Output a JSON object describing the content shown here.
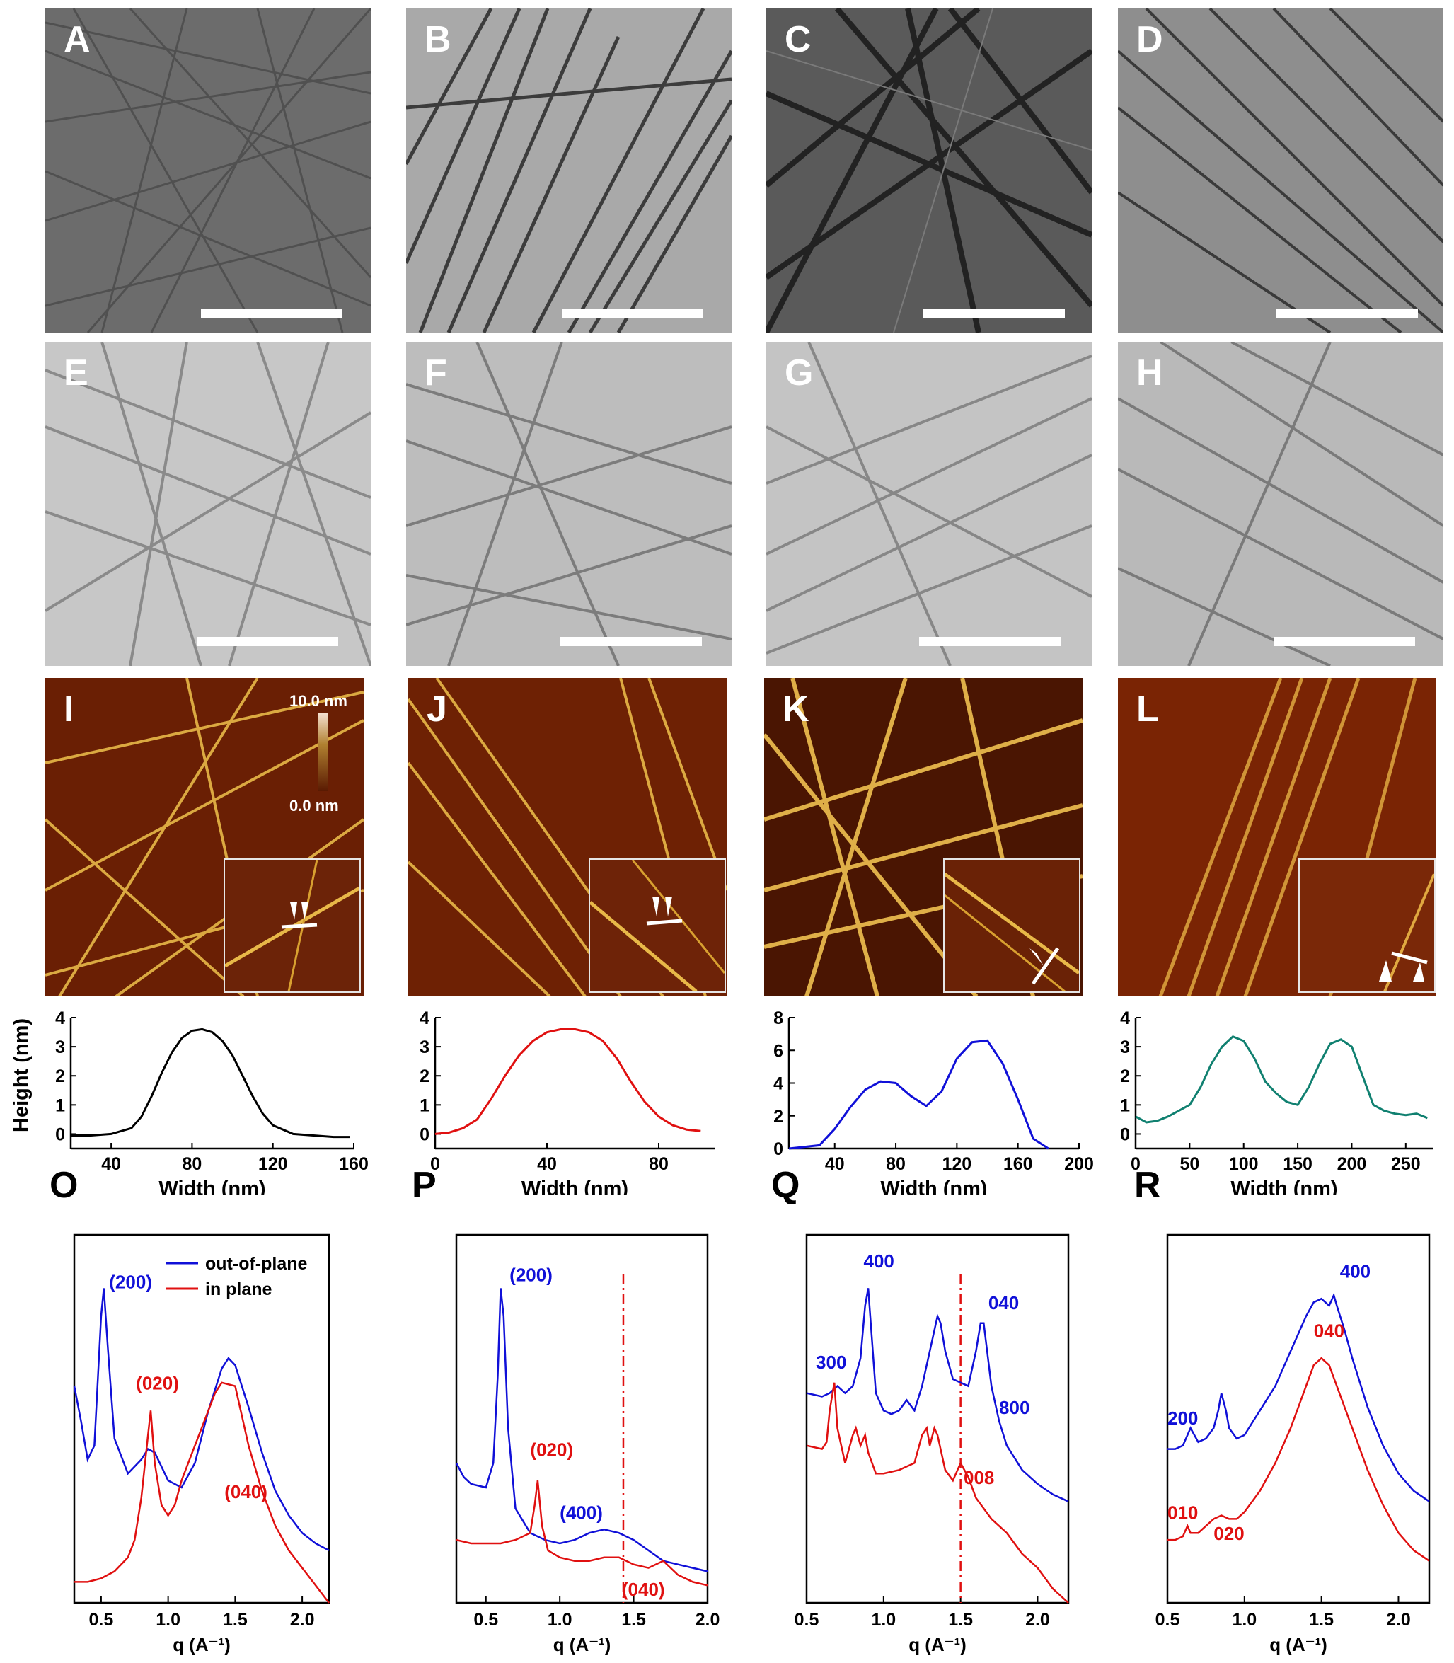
{
  "figure": {
    "sem_panels": [
      {
        "label": "A"
      },
      {
        "label": "B"
      },
      {
        "label": "C"
      },
      {
        "label": "D"
      }
    ],
    "tem_panels": [
      {
        "label": "E"
      },
      {
        "label": "F"
      },
      {
        "label": "G"
      },
      {
        "label": "H"
      }
    ],
    "afm_panels": [
      {
        "label": "I",
        "colorbar_max": "10.0 nm",
        "colorbar_min": "0.0 nm"
      },
      {
        "label": "J"
      },
      {
        "label": "K"
      },
      {
        "label": "L"
      }
    ],
    "grazing_panels": [
      {
        "label": "O"
      },
      {
        "label": "P"
      },
      {
        "label": "Q"
      },
      {
        "label": "R"
      }
    ],
    "colors": {
      "afm_background": "#6a1f04",
      "afm_fiber": "#e8b848",
      "blue": "#1010d8",
      "red": "#e01010",
      "black": "#000000",
      "teal": "#108070"
    }
  },
  "chart_data": [
    {
      "panel": "I-profile",
      "type": "line",
      "ylabel": "Height (nm)",
      "xlabel": "Width (nm)",
      "xlim": [
        20,
        160
      ],
      "ylim": [
        -0.5,
        4
      ],
      "xticks": [
        40,
        80,
        120,
        160
      ],
      "yticks": [
        0,
        1,
        2,
        3,
        4
      ],
      "series": [
        {
          "color": "#000000",
          "x": [
            20,
            30,
            40,
            50,
            55,
            60,
            65,
            70,
            75,
            80,
            85,
            90,
            95,
            100,
            105,
            110,
            115,
            120,
            130,
            140,
            150,
            158
          ],
          "y": [
            -0.05,
            -0.05,
            0.0,
            0.2,
            0.6,
            1.3,
            2.1,
            2.8,
            3.3,
            3.55,
            3.6,
            3.5,
            3.2,
            2.7,
            2.0,
            1.3,
            0.7,
            0.3,
            0.0,
            -0.05,
            -0.1,
            -0.1
          ]
        }
      ]
    },
    {
      "panel": "J-profile",
      "type": "line",
      "xlabel": "Width (nm)",
      "xlim": [
        0,
        100
      ],
      "ylim": [
        -0.5,
        4
      ],
      "xticks": [
        0,
        40,
        80
      ],
      "yticks": [
        0,
        1,
        2,
        3,
        4
      ],
      "series": [
        {
          "color": "#e01010",
          "x": [
            0,
            5,
            10,
            15,
            20,
            25,
            30,
            35,
            40,
            45,
            50,
            55,
            60,
            65,
            70,
            75,
            80,
            85,
            90,
            95
          ],
          "y": [
            0.0,
            0.05,
            0.2,
            0.5,
            1.2,
            2.0,
            2.7,
            3.2,
            3.5,
            3.6,
            3.6,
            3.5,
            3.2,
            2.6,
            1.8,
            1.1,
            0.6,
            0.3,
            0.15,
            0.1
          ]
        }
      ]
    },
    {
      "panel": "K-profile",
      "type": "line",
      "xlabel": "Width (nm)",
      "xlim": [
        10,
        200
      ],
      "ylim": [
        0,
        8
      ],
      "xticks": [
        40,
        80,
        120,
        160,
        200
      ],
      "yticks": [
        0,
        2,
        4,
        6,
        8
      ],
      "series": [
        {
          "color": "#1010d8",
          "x": [
            10,
            20,
            30,
            40,
            50,
            60,
            70,
            80,
            90,
            100,
            110,
            120,
            130,
            140,
            150,
            160,
            170,
            180
          ],
          "y": [
            0.0,
            0.1,
            0.2,
            1.2,
            2.5,
            3.6,
            4.1,
            4.0,
            3.2,
            2.6,
            3.5,
            5.5,
            6.5,
            6.6,
            5.2,
            3.0,
            0.6,
            0.0
          ]
        }
      ]
    },
    {
      "panel": "L-profile",
      "type": "line",
      "xlabel": "Width (nm)",
      "xlim": [
        0,
        275
      ],
      "ylim": [
        -0.5,
        4
      ],
      "xticks": [
        0,
        50,
        100,
        150,
        200,
        250
      ],
      "yticks": [
        0,
        1,
        2,
        3,
        4
      ],
      "series": [
        {
          "color": "#108070",
          "x": [
            0,
            10,
            20,
            30,
            40,
            50,
            60,
            70,
            80,
            90,
            100,
            110,
            120,
            130,
            140,
            150,
            160,
            170,
            180,
            190,
            200,
            210,
            220,
            230,
            240,
            250,
            260,
            270
          ],
          "y": [
            0.6,
            0.4,
            0.45,
            0.6,
            0.8,
            1.0,
            1.6,
            2.4,
            3.0,
            3.35,
            3.2,
            2.6,
            1.8,
            1.4,
            1.1,
            1.0,
            1.6,
            2.4,
            3.1,
            3.25,
            3.0,
            2.0,
            1.0,
            0.8,
            0.7,
            0.65,
            0.7,
            0.55
          ]
        }
      ]
    },
    {
      "panel": "O",
      "type": "line",
      "xlabel": "q (A⁻¹)",
      "xlim": [
        0.3,
        2.2
      ],
      "ylim": [
        0,
        1
      ],
      "xticks": [
        0.5,
        1.0,
        1.5,
        2.0
      ],
      "legend": [
        "out-of-plane",
        "in plane"
      ],
      "legend_position": "top-right",
      "series": [
        {
          "name": "out-of-plane",
          "color": "#1010d8",
          "x": [
            0.3,
            0.35,
            0.4,
            0.45,
            0.5,
            0.52,
            0.55,
            0.6,
            0.7,
            0.8,
            0.85,
            0.9,
            1.0,
            1.1,
            1.2,
            1.3,
            1.4,
            1.45,
            1.5,
            1.6,
            1.7,
            1.8,
            1.9,
            2.0,
            2.1,
            2.2
          ],
          "y": [
            0.62,
            0.52,
            0.41,
            0.45,
            0.82,
            0.9,
            0.73,
            0.47,
            0.37,
            0.41,
            0.44,
            0.43,
            0.35,
            0.33,
            0.4,
            0.55,
            0.67,
            0.7,
            0.68,
            0.56,
            0.43,
            0.32,
            0.25,
            0.2,
            0.17,
            0.15
          ]
        },
        {
          "name": "in plane",
          "color": "#e01010",
          "x": [
            0.3,
            0.4,
            0.5,
            0.6,
            0.7,
            0.75,
            0.8,
            0.85,
            0.87,
            0.9,
            0.95,
            1.0,
            1.05,
            1.1,
            1.2,
            1.3,
            1.35,
            1.4,
            1.5,
            1.6,
            1.7,
            1.8,
            1.9,
            2.0,
            2.1,
            2.2
          ],
          "y": [
            0.06,
            0.06,
            0.07,
            0.09,
            0.13,
            0.18,
            0.3,
            0.48,
            0.55,
            0.4,
            0.28,
            0.25,
            0.28,
            0.35,
            0.45,
            0.55,
            0.6,
            0.63,
            0.62,
            0.45,
            0.32,
            0.22,
            0.15,
            0.1,
            0.05,
            0.0
          ]
        }
      ],
      "annotations": [
        {
          "text": "(200)",
          "color": "#1010d8"
        },
        {
          "text": "(020)",
          "color": "#e01010"
        },
        {
          "text": "(040)",
          "color": "#e01010"
        }
      ]
    },
    {
      "panel": "P",
      "type": "line",
      "xlabel": "q (A⁻¹)",
      "xlim": [
        0.3,
        2.0
      ],
      "ylim": [
        0,
        1
      ],
      "xticks": [
        0.5,
        1.0,
        1.5,
        2.0
      ],
      "vline": 1.43,
      "series": [
        {
          "name": "",
          "color": "#1010d8",
          "x": [
            0.3,
            0.35,
            0.4,
            0.5,
            0.55,
            0.58,
            0.6,
            0.62,
            0.65,
            0.7,
            0.8,
            0.9,
            1.0,
            1.1,
            1.2,
            1.3,
            1.4,
            1.5,
            1.6,
            1.7,
            1.8,
            1.9,
            2.0
          ],
          "y": [
            0.4,
            0.36,
            0.34,
            0.33,
            0.4,
            0.65,
            0.9,
            0.82,
            0.5,
            0.27,
            0.2,
            0.18,
            0.17,
            0.18,
            0.2,
            0.21,
            0.2,
            0.18,
            0.15,
            0.12,
            0.11,
            0.1,
            0.09
          ]
        },
        {
          "name": "",
          "color": "#e01010",
          "x": [
            0.3,
            0.4,
            0.5,
            0.6,
            0.7,
            0.8,
            0.83,
            0.85,
            0.88,
            0.92,
            1.0,
            1.1,
            1.2,
            1.3,
            1.4,
            1.5,
            1.6,
            1.7,
            1.8,
            1.9,
            2.0
          ],
          "y": [
            0.18,
            0.17,
            0.17,
            0.17,
            0.18,
            0.2,
            0.28,
            0.35,
            0.22,
            0.15,
            0.13,
            0.12,
            0.12,
            0.13,
            0.13,
            0.11,
            0.1,
            0.12,
            0.08,
            0.06,
            0.05
          ]
        }
      ],
      "annotations": [
        {
          "text": "(200)",
          "color": "#1010d8"
        },
        {
          "text": "(020)",
          "color": "#e01010"
        },
        {
          "text": "(400)",
          "color": "#1010d8"
        },
        {
          "text": "(040)",
          "color": "#e01010"
        }
      ]
    },
    {
      "panel": "Q",
      "type": "line",
      "xlabel": "q (A⁻¹)",
      "xlim": [
        0.5,
        2.2
      ],
      "ylim": [
        0,
        1
      ],
      "xticks": [
        0.5,
        1.0,
        1.5,
        2.0
      ],
      "vline": 1.5,
      "series": [
        {
          "name": "",
          "color": "#1010d8",
          "x": [
            0.5,
            0.6,
            0.65,
            0.7,
            0.75,
            0.8,
            0.85,
            0.88,
            0.9,
            0.92,
            0.95,
            1.0,
            1.05,
            1.1,
            1.15,
            1.2,
            1.25,
            1.3,
            1.35,
            1.37,
            1.4,
            1.45,
            1.5,
            1.55,
            1.6,
            1.63,
            1.65,
            1.7,
            1.75,
            1.8,
            1.9,
            2.0,
            2.1,
            2.2
          ],
          "y": [
            0.6,
            0.59,
            0.6,
            0.62,
            0.6,
            0.62,
            0.7,
            0.85,
            0.9,
            0.78,
            0.6,
            0.55,
            0.54,
            0.55,
            0.58,
            0.55,
            0.62,
            0.72,
            0.82,
            0.8,
            0.72,
            0.64,
            0.63,
            0.62,
            0.72,
            0.8,
            0.8,
            0.62,
            0.52,
            0.45,
            0.38,
            0.34,
            0.31,
            0.29
          ]
        },
        {
          "name": "",
          "color": "#e01010",
          "x": [
            0.5,
            0.6,
            0.63,
            0.65,
            0.68,
            0.7,
            0.75,
            0.8,
            0.82,
            0.85,
            0.88,
            0.9,
            0.95,
            1.0,
            1.1,
            1.2,
            1.25,
            1.28,
            1.3,
            1.33,
            1.35,
            1.4,
            1.45,
            1.5,
            1.55,
            1.6,
            1.7,
            1.8,
            1.9,
            2.0,
            2.1,
            2.2
          ],
          "y": [
            0.45,
            0.44,
            0.46,
            0.55,
            0.63,
            0.5,
            0.4,
            0.48,
            0.5,
            0.45,
            0.48,
            0.43,
            0.37,
            0.37,
            0.38,
            0.4,
            0.48,
            0.5,
            0.45,
            0.5,
            0.48,
            0.38,
            0.35,
            0.4,
            0.36,
            0.3,
            0.24,
            0.2,
            0.14,
            0.1,
            0.04,
            0.0
          ]
        }
      ],
      "annotations": [
        {
          "text": "400",
          "color": "#1010d8"
        },
        {
          "text": "300",
          "color": "#1010d8"
        },
        {
          "text": "040",
          "color": "#1010d8"
        },
        {
          "text": "800",
          "color": "#1010d8"
        },
        {
          "text": "008",
          "color": "#e01010"
        }
      ]
    },
    {
      "panel": "R",
      "type": "line",
      "xlabel": "q (A⁻¹)",
      "xlim": [
        0.5,
        2.2
      ],
      "ylim": [
        0,
        1
      ],
      "xticks": [
        0.5,
        1.0,
        1.5,
        2.0
      ],
      "series": [
        {
          "name": "",
          "color": "#1010d8",
          "x": [
            0.5,
            0.55,
            0.6,
            0.63,
            0.65,
            0.7,
            0.75,
            0.8,
            0.83,
            0.85,
            0.88,
            0.9,
            0.95,
            1.0,
            1.1,
            1.2,
            1.3,
            1.4,
            1.45,
            1.5,
            1.55,
            1.58,
            1.6,
            1.65,
            1.7,
            1.8,
            1.9,
            2.0,
            2.1,
            2.2
          ],
          "y": [
            0.44,
            0.44,
            0.45,
            0.48,
            0.5,
            0.46,
            0.47,
            0.5,
            0.55,
            0.6,
            0.55,
            0.5,
            0.47,
            0.48,
            0.55,
            0.62,
            0.72,
            0.82,
            0.86,
            0.87,
            0.85,
            0.88,
            0.85,
            0.78,
            0.7,
            0.56,
            0.45,
            0.37,
            0.32,
            0.29
          ]
        },
        {
          "name": "",
          "color": "#e01010",
          "x": [
            0.5,
            0.55,
            0.6,
            0.63,
            0.65,
            0.7,
            0.75,
            0.8,
            0.85,
            0.9,
            0.95,
            1.0,
            1.1,
            1.2,
            1.3,
            1.4,
            1.45,
            1.5,
            1.55,
            1.6,
            1.7,
            1.8,
            1.9,
            2.0,
            2.1,
            2.2
          ],
          "y": [
            0.18,
            0.18,
            0.19,
            0.22,
            0.2,
            0.2,
            0.22,
            0.24,
            0.25,
            0.24,
            0.24,
            0.26,
            0.32,
            0.4,
            0.5,
            0.62,
            0.68,
            0.7,
            0.68,
            0.62,
            0.5,
            0.38,
            0.28,
            0.2,
            0.15,
            0.12
          ]
        }
      ],
      "annotations": [
        {
          "text": "400",
          "color": "#1010d8"
        },
        {
          "text": "040",
          "color": "#e01010"
        },
        {
          "text": "200",
          "color": "#1010d8"
        },
        {
          "text": "010",
          "color": "#e01010"
        },
        {
          "text": "020",
          "color": "#e01010"
        }
      ]
    }
  ]
}
